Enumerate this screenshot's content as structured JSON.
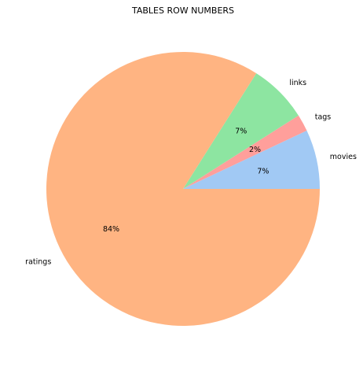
{
  "chart_data": {
    "type": "pie",
    "title": "TABLES ROW NUMBERS",
    "categories": [
      "movies",
      "tags",
      "links",
      "ratings"
    ],
    "values": [
      7,
      2,
      7,
      84
    ],
    "percent_labels": [
      "7%",
      "2%",
      "7%",
      "84%"
    ],
    "colors": [
      "#a1c9f4",
      "#ff9f9b",
      "#8de5a1",
      "#ffb482"
    ],
    "start_angle_deg": 0,
    "direction": "counterclockwise"
  }
}
